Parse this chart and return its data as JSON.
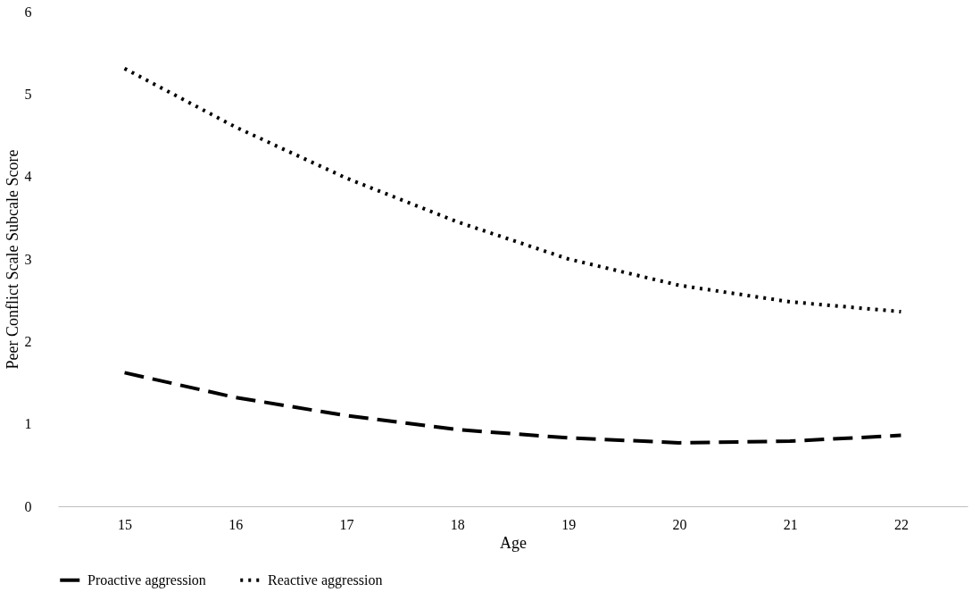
{
  "chart_data": {
    "type": "line",
    "xlabel": "Age",
    "ylabel": "Peer Conflict Scale Subcale Score",
    "categories": [
      "15",
      "16",
      "17",
      "18",
      "19",
      "20",
      "21",
      "22"
    ],
    "series": [
      {
        "name": "Proactive aggression",
        "color": "#000000",
        "line_style": "dashed",
        "values": [
          1.62,
          1.32,
          1.1,
          0.93,
          0.83,
          0.77,
          0.79,
          0.86
        ]
      },
      {
        "name": "Reactive aggression",
        "color": "#000000",
        "line_style": "dotted",
        "values": [
          5.31,
          4.6,
          3.98,
          3.45,
          3.0,
          2.68,
          2.48,
          2.36
        ]
      }
    ],
    "ylim": [
      0,
      6
    ],
    "yticks": [
      0,
      1,
      2,
      3,
      4,
      5,
      6
    ],
    "grid": false,
    "legend": "bottom",
    "marker": "none"
  }
}
